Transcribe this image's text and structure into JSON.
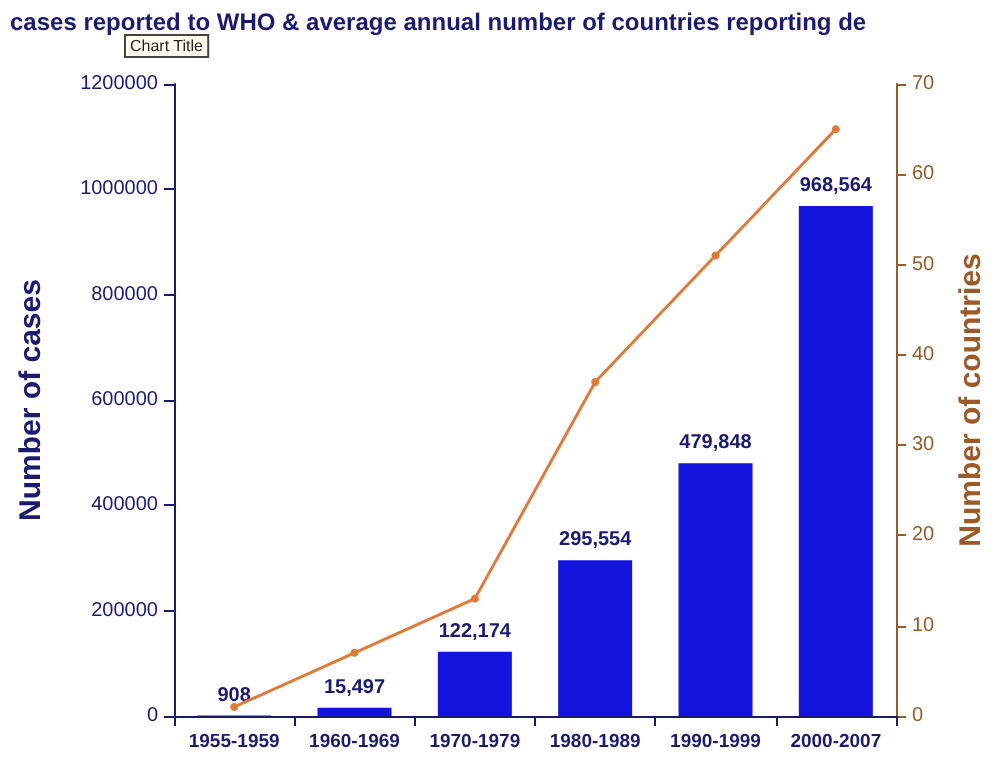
{
  "chart_data": {
    "type": "bar",
    "title": "cases reported to WHO & average annual number of countries reporting de",
    "annotations": [
      "Chart Title"
    ],
    "ylabel": "Number of cases",
    "y2label": "Number of countries",
    "categories": [
      "1955-1959",
      "1960-1969",
      "1970-1979",
      "1980-1989",
      "1990-1999",
      "2000-2007"
    ],
    "series": [
      {
        "color": "#1414dc",
        "values": [
          908,
          15497,
          122174,
          295554,
          479848,
          968564
        ],
        "value_labels": [
          "908",
          "15,497",
          "122,174",
          "295,554",
          "479,848",
          "968,564"
        ]
      },
      {
        "type": "line",
        "axis": "y2",
        "color": "#e07a3a",
        "marker": "circle",
        "values": [
          1,
          7,
          13,
          37,
          51,
          65
        ]
      }
    ],
    "ylim": [
      0,
      1200000
    ],
    "yticks": [
      0,
      200000,
      400000,
      600000,
      800000,
      1000000,
      1200000
    ],
    "y2lim": [
      0,
      70
    ],
    "y2ticks": [
      0,
      10,
      20,
      30,
      40,
      50,
      60,
      70
    ],
    "grid": false
  }
}
